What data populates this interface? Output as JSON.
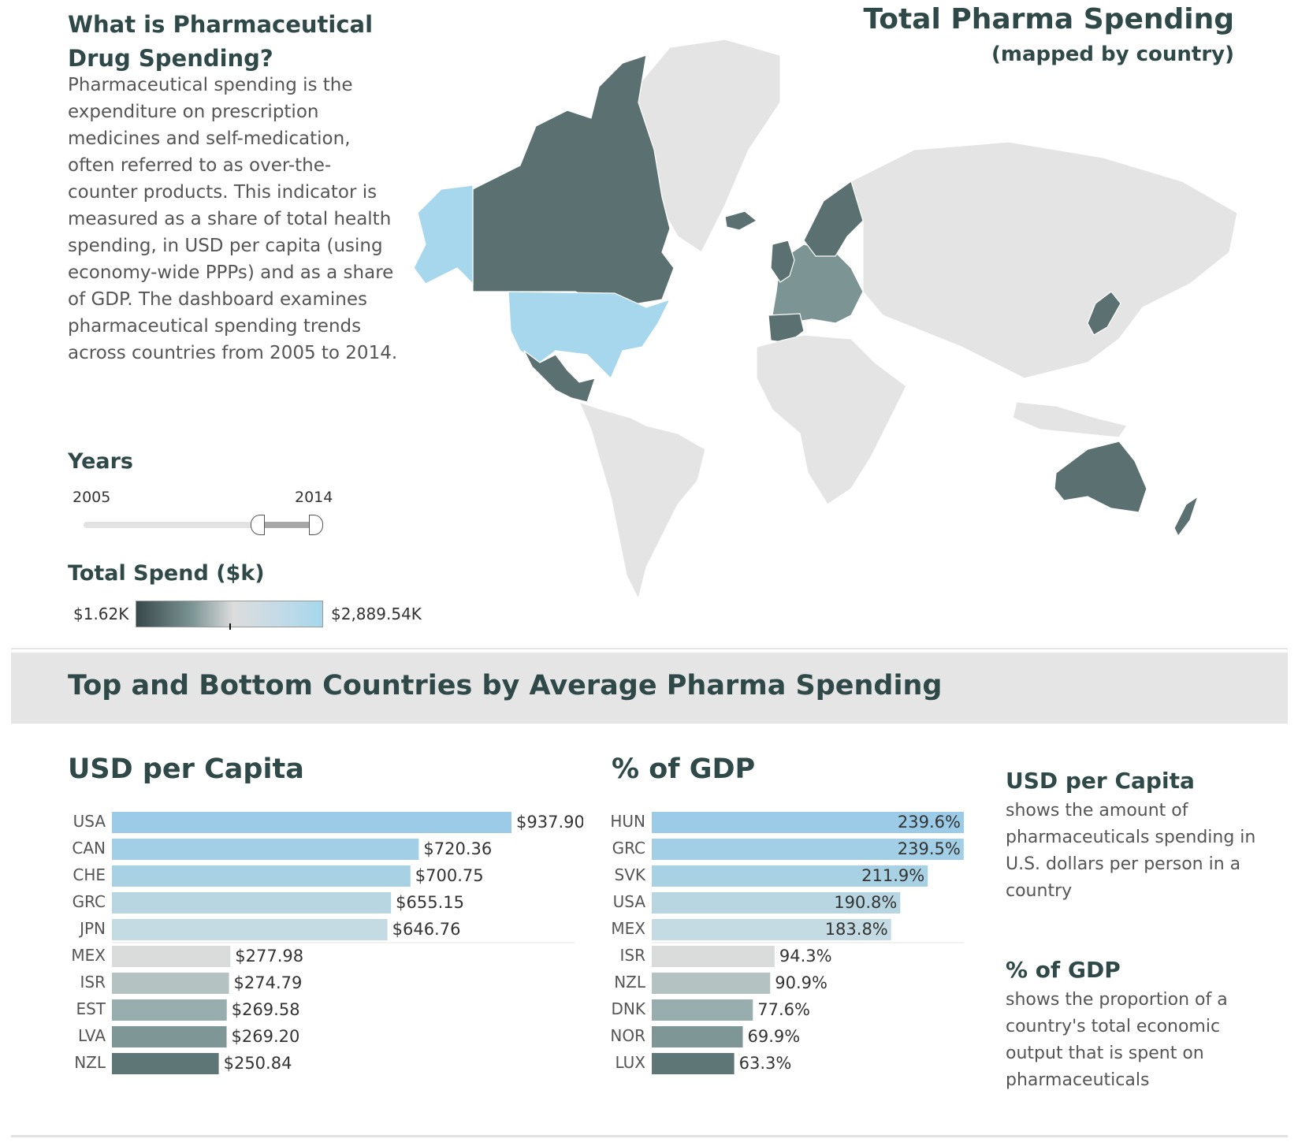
{
  "intro": {
    "title": "What is Pharmaceutical Drug Spending?",
    "body": "Pharmaceutical spending is the expenditure on prescription medicines and self-medication, often referred to as over-the-counter products. This indicator is measured as a share of total health spending, in USD per capita (using economy-wide PPPs) and as a share of GDP. The dashboard examines pharmaceutical spending trends across countries from 2005 to 2014."
  },
  "map": {
    "title": "Total Pharma Spending",
    "subtitle": "(mapped by country)",
    "colors": {
      "high": "#a6d7ec",
      "mid": "#7c9494",
      "low": "#5b7070",
      "no_data": "#e4e4e4",
      "border": "#ffffff"
    }
  },
  "filters": {
    "years_label": "Years",
    "year_start": "2005",
    "year_end": "2014",
    "selected_range_fraction": [
      0.72,
      1.0
    ]
  },
  "legend": {
    "label": "Total Spend ($k)",
    "min": "$1.62K",
    "max": "$2,889.54K"
  },
  "section": {
    "title": "Top and Bottom Countries by Average Pharma Spending"
  },
  "notes": {
    "usd_title": "USD per Capita",
    "usd_body": "shows the amount of pharmaceuticals spending in U.S. dollars per person in a country",
    "gdp_title": "% of GDP",
    "gdp_body": "shows the proportion of a country's total economic output that is spent on pharmaceuticals"
  },
  "chart_data": [
    {
      "type": "bar",
      "orientation": "horizontal",
      "title": "USD per Capita",
      "categories": [
        "USA",
        "CAN",
        "CHE",
        "GRC",
        "JPN",
        "MEX",
        "ISR",
        "EST",
        "LVA",
        "NZL"
      ],
      "values": [
        937.9,
        720.36,
        700.75,
        655.15,
        646.76,
        277.98,
        274.79,
        269.58,
        269.2,
        250.84
      ],
      "labels": [
        "$937.90",
        "$720.36",
        "$700.75",
        "$655.15",
        "$646.76",
        "$277.98",
        "$274.79",
        "$269.58",
        "$269.20",
        "$250.84"
      ],
      "colors": [
        "#9bcbe6",
        "#a3cfe6",
        "#a9d1e4",
        "#b8d6e2",
        "#c5dbe3",
        "#d9dcdb",
        "#b4c3c2",
        "#98aeae",
        "#7e9696",
        "#5f7676"
      ],
      "xlim": [
        0,
        937.9
      ]
    },
    {
      "type": "bar",
      "orientation": "horizontal",
      "title": "% of GDP",
      "categories": [
        "HUN",
        "GRC",
        "SVK",
        "USA",
        "MEX",
        "ISR",
        "NZL",
        "DNK",
        "NOR",
        "LUX"
      ],
      "values": [
        239.6,
        239.5,
        211.9,
        190.8,
        183.8,
        94.3,
        90.9,
        77.6,
        69.9,
        63.3
      ],
      "labels": [
        "239.6%",
        "239.5%",
        "211.9%",
        "190.8%",
        "183.8%",
        "94.3%",
        "90.9%",
        "77.6%",
        "69.9%",
        "63.3%"
      ],
      "colors": [
        "#9bcbe6",
        "#a3cfe6",
        "#a9d1e4",
        "#b8d6e2",
        "#c5dbe3",
        "#d9dcdb",
        "#b4c3c2",
        "#98aeae",
        "#7e9696",
        "#5f7676"
      ],
      "xlim": [
        0,
        239.6
      ]
    }
  ]
}
